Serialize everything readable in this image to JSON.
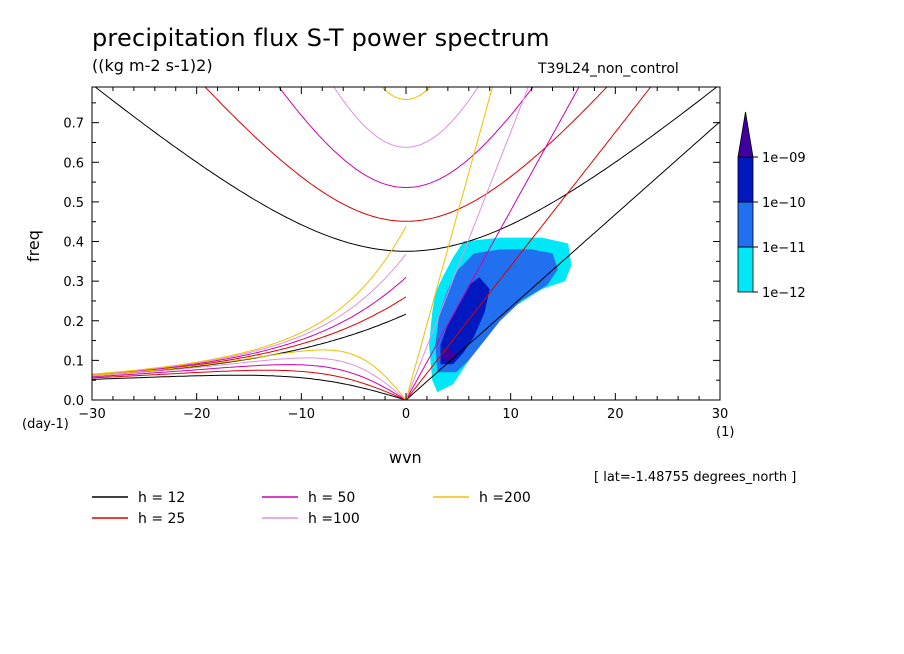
{
  "header": {
    "title": "precipitation flux S-T power spectrum",
    "units": "((kg m-2 s-1)2)",
    "run_label": "T39L24_non_control",
    "lat_note": "[ lat=-1.48755 degrees_north ]"
  },
  "axes": {
    "xlabel": "wvn",
    "ylabel": "freq",
    "x_unit": "(1)",
    "y_unit": "(day-1)"
  },
  "legend_entries": [
    {
      "label": "h = 12",
      "color": "#000000"
    },
    {
      "label": "h = 25",
      "color": "#e00000"
    },
    {
      "label": "h = 50",
      "color": "#d000b0"
    },
    {
      "label": "h =100",
      "color": "#e090e0"
    },
    {
      "label": "h =200",
      "color": "#f0c000"
    }
  ],
  "colorbar": {
    "labels": [
      "1e-12",
      "1e-11",
      "1e-10",
      "1e-09"
    ],
    "colors": [
      "#00e8f8",
      "#2070f0",
      "#0018c0",
      "#4000a0"
    ]
  },
  "chart_data": {
    "type": "contour",
    "title": "precipitation flux S-T power spectrum",
    "subtitle": "((kg m-2 s-1)2)",
    "xlabel": "wvn",
    "ylabel": "freq",
    "xlim": [
      -30,
      30
    ],
    "ylim": [
      0,
      0.79
    ],
    "x_ticks": [
      -30,
      -20,
      -10,
      0,
      10,
      20,
      30
    ],
    "x_tick_labels": [
      "-30",
      "-20",
      "-10",
      "0",
      "10",
      "20",
      "30"
    ],
    "y_ticks": [
      0,
      0.1,
      0.2,
      0.3,
      0.4,
      0.5,
      0.6,
      0.7
    ],
    "y_tick_labels": [
      "0.0",
      "0.1",
      "0.2",
      "0.3",
      "0.4",
      "0.5",
      "0.6",
      "0.7"
    ],
    "contour_levels": [
      1e-12,
      1e-11,
      1e-10,
      1e-09
    ],
    "dispersion_curves": {
      "equivalent_depths_m": [
        12,
        25,
        50,
        100,
        200
      ],
      "families": [
        "kelvin",
        "equatorial_rossby_n1",
        "inertia_gravity_n1",
        "mixed_rossby_gravity"
      ]
    },
    "shaded_regions": [
      {
        "level": "1e-12",
        "polygon": [
          [
            2.5,
            0.05
          ],
          [
            2.2,
            0.14
          ],
          [
            2.5,
            0.22
          ],
          [
            2.8,
            0.27
          ],
          [
            3.5,
            0.31
          ],
          [
            4.5,
            0.36
          ],
          [
            5.5,
            0.4
          ],
          [
            9,
            0.41
          ],
          [
            13,
            0.41
          ],
          [
            15.5,
            0.395
          ],
          [
            15.8,
            0.34
          ],
          [
            15.2,
            0.3
          ],
          [
            13,
            0.28
          ],
          [
            10,
            0.23
          ],
          [
            8,
            0.18
          ],
          [
            6.5,
            0.12
          ],
          [
            5.5,
            0.08
          ],
          [
            4.5,
            0.04
          ],
          [
            3,
            0.02
          ]
        ]
      },
      {
        "level": "1e-11",
        "polygon": [
          [
            3,
            0.07
          ],
          [
            2.8,
            0.14
          ],
          [
            3.2,
            0.22
          ],
          [
            4,
            0.28
          ],
          [
            5,
            0.33
          ],
          [
            6.5,
            0.37
          ],
          [
            9,
            0.38
          ],
          [
            12,
            0.38
          ],
          [
            14,
            0.37
          ],
          [
            14.5,
            0.33
          ],
          [
            13.5,
            0.29
          ],
          [
            11,
            0.25
          ],
          [
            9,
            0.2
          ],
          [
            7.5,
            0.15
          ],
          [
            6,
            0.1
          ],
          [
            4.8,
            0.07
          ]
        ]
      },
      {
        "level": "1e-10",
        "polygon": [
          [
            3.3,
            0.09
          ],
          [
            3.3,
            0.14
          ],
          [
            4,
            0.19
          ],
          [
            5,
            0.24
          ],
          [
            6,
            0.29
          ],
          [
            7,
            0.31
          ],
          [
            8,
            0.28
          ],
          [
            7.5,
            0.22
          ],
          [
            6.5,
            0.16
          ],
          [
            5.5,
            0.12
          ],
          [
            4.5,
            0.09
          ]
        ]
      },
      {
        "level": "1e-09",
        "polygon": [
          [
            3.5,
            0.1
          ],
          [
            3.6,
            0.125
          ],
          [
            4.2,
            0.13
          ],
          [
            4.8,
            0.115
          ],
          [
            4.5,
            0.1
          ]
        ]
      }
    ]
  }
}
